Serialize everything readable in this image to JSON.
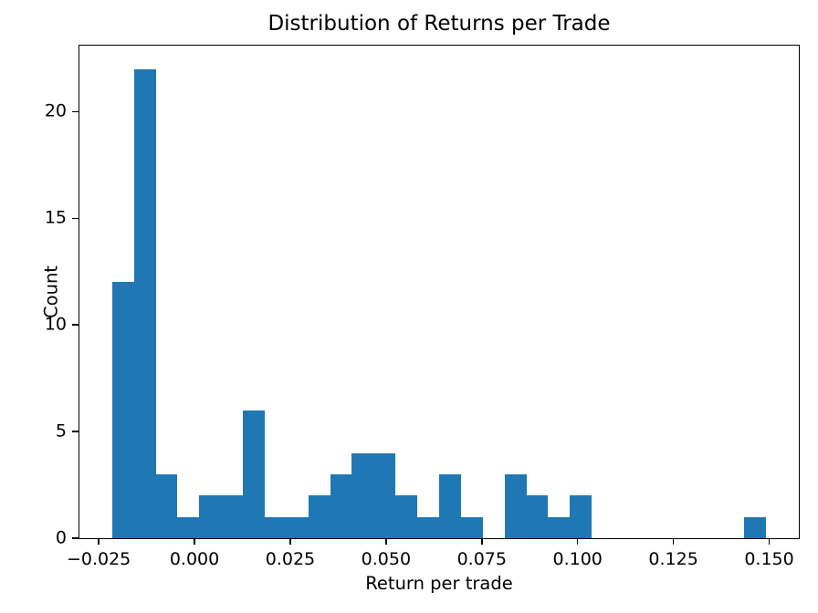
{
  "chart_data": {
    "type": "bar",
    "subtype": "histogram",
    "title": "Distribution of Returns per Trade",
    "xlabel": "Return per trade",
    "ylabel": "Count",
    "bar_color": "#1f77b4",
    "background_color": "#ffffff",
    "text_color": "#000000",
    "grid": false,
    "legend": null,
    "bin_start": -0.0215,
    "bin_width": 0.00569,
    "counts": [
      12,
      22,
      3,
      1,
      2,
      2,
      6,
      1,
      1,
      2,
      3,
      4,
      4,
      2,
      1,
      3,
      1,
      0,
      3,
      2,
      1,
      2,
      0,
      0,
      0,
      0,
      0,
      0,
      0,
      1
    ],
    "x_ticks": [
      -0.025,
      0.0,
      0.025,
      0.05,
      0.075,
      0.1,
      0.125,
      0.15
    ],
    "x_tick_labels": [
      "−0.025",
      "0.000",
      "0.025",
      "0.050",
      "0.075",
      "0.100",
      "0.125",
      "0.150"
    ],
    "y_ticks": [
      0,
      5,
      10,
      15,
      20
    ],
    "y_tick_labels": [
      "0",
      "5",
      "10",
      "15",
      "20"
    ],
    "xlim": [
      -0.030035,
      0.157735
    ],
    "ylim": [
      0,
      23.1
    ]
  }
}
